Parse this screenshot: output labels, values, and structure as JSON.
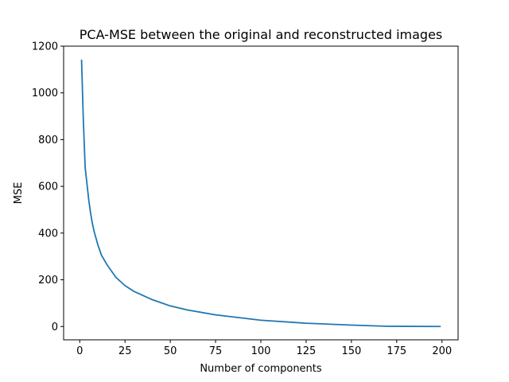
{
  "chart_data": {
    "type": "line",
    "title": "PCA-MSE between the original and reconstructed images",
    "xlabel": "Number of components",
    "ylabel": "MSE",
    "xlim": [
      -8.9,
      208.9
    ],
    "ylim": [
      -57,
      1200
    ],
    "xticks": [
      0,
      25,
      50,
      75,
      100,
      125,
      150,
      175,
      200
    ],
    "yticks": [
      0,
      200,
      400,
      600,
      800,
      1000,
      1200
    ],
    "grid": false,
    "legend": "none",
    "series": [
      {
        "color": "#1f77b4",
        "x": [
          1,
          2,
          3,
          4,
          5,
          6,
          7,
          8,
          10,
          12,
          15,
          20,
          25,
          30,
          40,
          50,
          60,
          75,
          100,
          125,
          150,
          170,
          199
        ],
        "y": [
          1140,
          880,
          680,
          610,
          540,
          485,
          440,
          405,
          350,
          305,
          265,
          210,
          175,
          150,
          115,
          88,
          70,
          50,
          27,
          14,
          6,
          1,
          0
        ]
      }
    ]
  }
}
